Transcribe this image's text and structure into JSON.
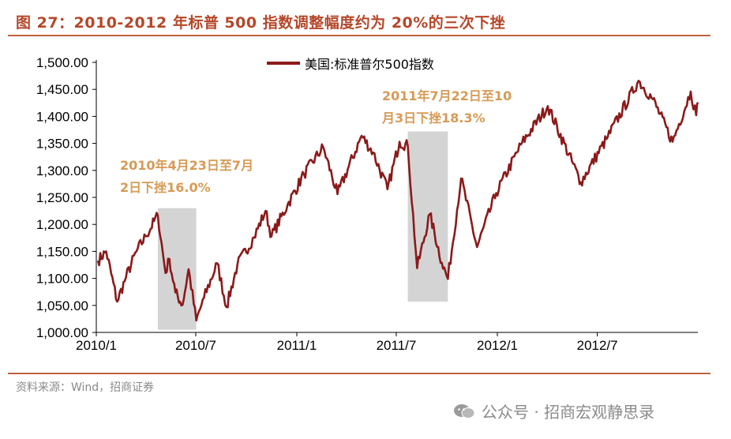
{
  "header": {
    "title": "图 27：2010-2012 年标普 500 指数调整幅度约为 20%的三次下挫"
  },
  "footer": {
    "source": "资料来源：Wind，招商证券",
    "watermark": "公众号 · 招商宏观静思录"
  },
  "icons": {
    "watermark_icon": "wechat-icon"
  },
  "colors": {
    "line": "#8b1a1a",
    "shade": "#d4d4d4",
    "annotation": "#d79a55",
    "title": "#b5472a"
  },
  "chart_data": {
    "type": "line",
    "title": "",
    "xlabel": "",
    "ylabel": "",
    "ylim": [
      1000,
      1500
    ],
    "yticks": [
      "1,000.00",
      "1,050.00",
      "1,100.00",
      "1,150.00",
      "1,200.00",
      "1,250.00",
      "1,300.00",
      "1,350.00",
      "1,400.00",
      "1,450.00",
      "1,500.00"
    ],
    "xticks": [
      "2010/1",
      "2010/7",
      "2011/1",
      "2011/7",
      "2012/1",
      "2012/7"
    ],
    "xrange": [
      "2010-01-01",
      "2012-12-31"
    ],
    "legend": {
      "placement": "top-center",
      "entries": [
        "美国:标准普尔500指数"
      ]
    },
    "grid": false,
    "series": [
      {
        "name": "美国:标准普尔500指数",
        "points": [
          [
            "2010-01-04",
            1133
          ],
          [
            "2010-01-19",
            1150
          ],
          [
            "2010-02-08",
            1057
          ],
          [
            "2010-02-24",
            1102
          ],
          [
            "2010-03-15",
            1150
          ],
          [
            "2010-04-01",
            1178
          ],
          [
            "2010-04-23",
            1217
          ],
          [
            "2010-05-07",
            1110
          ],
          [
            "2010-05-14",
            1136
          ],
          [
            "2010-05-25",
            1074
          ],
          [
            "2010-06-07",
            1051
          ],
          [
            "2010-06-18",
            1117
          ],
          [
            "2010-07-02",
            1022
          ],
          [
            "2010-07-16",
            1064
          ],
          [
            "2010-08-09",
            1128
          ],
          [
            "2010-08-26",
            1047
          ],
          [
            "2010-09-15",
            1126
          ],
          [
            "2010-10-15",
            1176
          ],
          [
            "2010-11-05",
            1225
          ],
          [
            "2010-11-16",
            1178
          ],
          [
            "2010-12-15",
            1236
          ],
          [
            "2011-01-14",
            1293
          ],
          [
            "2011-02-18",
            1343
          ],
          [
            "2011-03-16",
            1256
          ],
          [
            "2011-04-29",
            1364
          ],
          [
            "2011-05-20",
            1333
          ],
          [
            "2011-06-15",
            1265
          ],
          [
            "2011-07-07",
            1353
          ],
          [
            "2011-07-22",
            1345
          ],
          [
            "2011-08-08",
            1119
          ],
          [
            "2011-08-31",
            1219
          ],
          [
            "2011-09-22",
            1129
          ],
          [
            "2011-10-03",
            1099
          ],
          [
            "2011-10-27",
            1285
          ],
          [
            "2011-11-25",
            1158
          ],
          [
            "2011-12-30",
            1258
          ],
          [
            "2012-02-15",
            1351
          ],
          [
            "2012-04-02",
            1419
          ],
          [
            "2012-06-01",
            1278
          ],
          [
            "2012-07-20",
            1362
          ],
          [
            "2012-09-14",
            1466
          ],
          [
            "2012-10-10",
            1432
          ],
          [
            "2012-11-15",
            1353
          ],
          [
            "2012-12-18",
            1446
          ],
          [
            "2012-12-28",
            1402
          ],
          [
            "2012-12-31",
            1426
          ]
        ]
      }
    ],
    "shaded_periods": [
      {
        "start": "2010-04-23",
        "end": "2010-07-02",
        "ymin": 1005,
        "ymax": 1230
      },
      {
        "start": "2011-07-22",
        "end": "2011-10-03",
        "ymin": 1057,
        "ymax": 1372
      }
    ],
    "annotations": [
      {
        "lines": [
          "2010年4月23日至7月",
          "2日下挫16.0%"
        ]
      },
      {
        "lines": [
          "2011年7月22日至10",
          "月3日下挫18.3%"
        ]
      }
    ]
  }
}
